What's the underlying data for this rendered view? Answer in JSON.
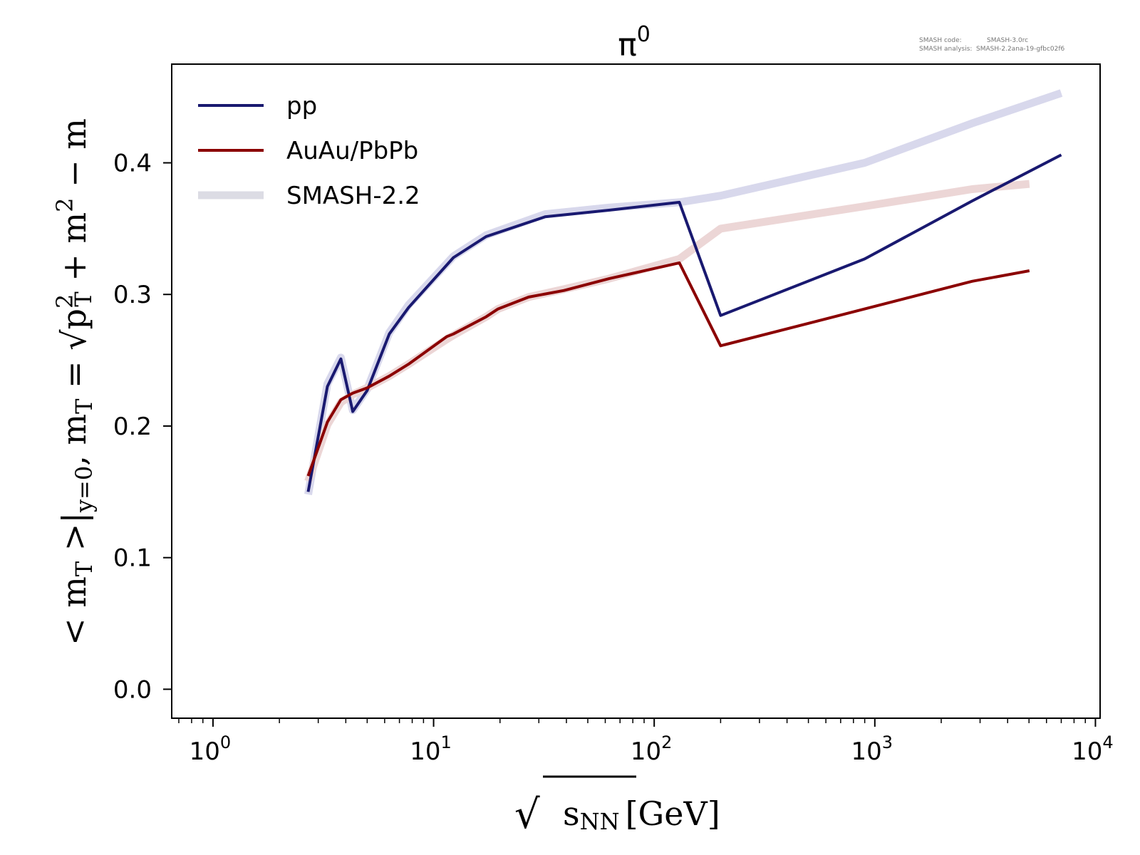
{
  "chart_data": {
    "type": "line",
    "title": "π",
    "title_superscript": "0",
    "xscale": "log",
    "xlim": [
      0.65,
      10500
    ],
    "ylim": [
      -0.022,
      0.475
    ],
    "xlabel_radical": "√",
    "xlabel_var": "s",
    "xlabel_sub": "NN",
    "xlabel_unit": "[GeV]",
    "ylabel_parts": [
      "< m",
      "T",
      " >|",
      "y=0",
      ",  m",
      "T",
      " = √",
      "p",
      "2",
      "T",
      " + m",
      "2",
      " − m"
    ],
    "x_ticks": [
      {
        "base": "10",
        "exp": "0",
        "value": 1
      },
      {
        "base": "10",
        "exp": "1",
        "value": 10
      },
      {
        "base": "10",
        "exp": "2",
        "value": 100
      },
      {
        "base": "10",
        "exp": "3",
        "value": 1000
      },
      {
        "base": "10",
        "exp": "4",
        "value": 10000
      }
    ],
    "y_ticks": [
      "0.0",
      "0.1",
      "0.2",
      "0.3",
      "0.4"
    ],
    "credits": {
      "code_label": "SMASH code:",
      "code_value": "SMASH-3.0rc",
      "analysis_label": "SMASH analysis:",
      "analysis_value": "SMASH-2.2ana-19-gfbc02f6"
    },
    "legend": [
      {
        "label": "pp",
        "color": "#191970",
        "style": "thin"
      },
      {
        "label": "AuAu/PbPb",
        "color": "#8b0000",
        "style": "thin"
      },
      {
        "label": "SMASH-2.2",
        "color": "#dcdce4",
        "style": "thick"
      }
    ],
    "series": [
      {
        "name": "SMASH-2.2 pp",
        "color": "#d8d8ec",
        "style": "thick",
        "x": [
          2.7,
          3.3,
          3.8,
          4.3,
          5.0,
          6.3,
          7.7,
          12.3,
          17.3,
          32,
          62.4,
          130,
          200,
          900,
          2760,
          7000
        ],
        "y": [
          0.148,
          0.232,
          0.252,
          0.212,
          0.228,
          0.271,
          0.292,
          0.329,
          0.345,
          0.361,
          0.366,
          0.37,
          0.375,
          0.4,
          0.43,
          0.453
        ]
      },
      {
        "name": "SMASH-2.2 AuAu/PbPb",
        "color": "#ecd6d6",
        "style": "thick",
        "x": [
          2.7,
          3.3,
          3.8,
          4.3,
          5.0,
          6.3,
          7.7,
          11.5,
          12.3,
          17.3,
          19.6,
          27,
          39,
          62.4,
          130,
          200,
          900,
          2760,
          5020
        ],
        "y": [
          0.158,
          0.201,
          0.218,
          0.224,
          0.229,
          0.238,
          0.247,
          0.266,
          0.269,
          0.283,
          0.289,
          0.298,
          0.304,
          0.312,
          0.327,
          0.35,
          0.367,
          0.38,
          0.384
        ]
      },
      {
        "name": "pp",
        "color": "#191970",
        "style": "thin",
        "x": [
          2.7,
          3.3,
          3.8,
          4.3,
          5.0,
          6.3,
          7.7,
          12.3,
          17.3,
          32,
          62.4,
          130,
          200,
          900,
          2760,
          7000
        ],
        "y": [
          0.15,
          0.23,
          0.251,
          0.211,
          0.227,
          0.27,
          0.29,
          0.328,
          0.344,
          0.359,
          0.364,
          0.37,
          0.284,
          0.327,
          0.371,
          0.406
        ]
      },
      {
        "name": "AuAu/PbPb",
        "color": "#8b0000",
        "style": "thin",
        "x": [
          2.7,
          3.3,
          3.8,
          4.3,
          5.0,
          6.3,
          7.7,
          11.5,
          12.3,
          17.3,
          19.6,
          27,
          39,
          62.4,
          130,
          200,
          900,
          2760,
          5020
        ],
        "y": [
          0.162,
          0.203,
          0.22,
          0.225,
          0.229,
          0.238,
          0.247,
          0.268,
          0.27,
          0.283,
          0.289,
          0.298,
          0.303,
          0.312,
          0.324,
          0.261,
          0.289,
          0.31,
          0.318
        ]
      }
    ]
  }
}
